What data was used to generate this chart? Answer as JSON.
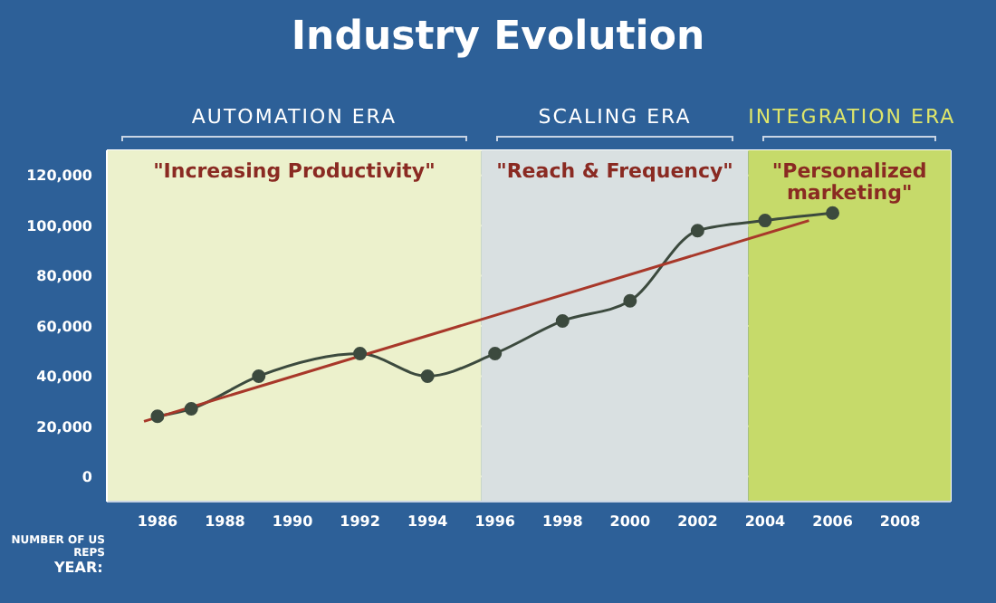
{
  "chart_data": {
    "type": "line",
    "title": "Industry Evolution",
    "xlabel": "YEAR:",
    "ylabel": "NUMBER OF US REPS",
    "xlim": [
      1984.5,
      2009.5
    ],
    "xticks": [
      1986,
      1988,
      1990,
      1992,
      1994,
      1996,
      1998,
      2000,
      2002,
      2004,
      2006,
      2008
    ],
    "ylim": [
      -10000,
      130000
    ],
    "yticks": [
      {
        "value": 0,
        "label": "0"
      },
      {
        "value": 20000,
        "label": "20,000"
      },
      {
        "value": 40000,
        "label": "40,000"
      },
      {
        "value": 60000,
        "label": "60,000"
      },
      {
        "value": 80000,
        "label": "80,000"
      },
      {
        "value": 100000,
        "label": "100,000"
      },
      {
        "value": 120000,
        "label": "120,000"
      }
    ],
    "grid": true,
    "series": [
      {
        "color": "#3c4a3e",
        "marker": "circle",
        "x": [
          1986,
          1987,
          1989,
          1992,
          1994,
          1996,
          1998,
          2000,
          2002,
          2004,
          2006
        ],
        "values": [
          24000,
          27000,
          40000,
          49000,
          40000,
          49000,
          62000,
          70000,
          98000,
          102000,
          105000
        ]
      },
      {
        "color": "#a8382a",
        "marker": "none",
        "x": [
          1985.6,
          2005.3
        ],
        "values": [
          22000,
          102000
        ]
      }
    ],
    "bands": [
      {
        "axis": "x",
        "from": 1984.5,
        "to": 1995.6,
        "label": "AUTOMATION ERA",
        "color": "#ecf1cc"
      },
      {
        "axis": "x",
        "from": 1995.6,
        "to": 2003.5,
        "label": "SCALING ERA",
        "color": "#d9e0e1"
      },
      {
        "axis": "x",
        "from": 2003.5,
        "to": 2009.5,
        "label": "INTEGRATION ERA",
        "color": "#c6da6a"
      }
    ],
    "annotations": [
      "\"Increasing Productivity\"",
      "\"Reach & Frequency\"",
      "\"Personalized marketing\""
    ]
  }
}
